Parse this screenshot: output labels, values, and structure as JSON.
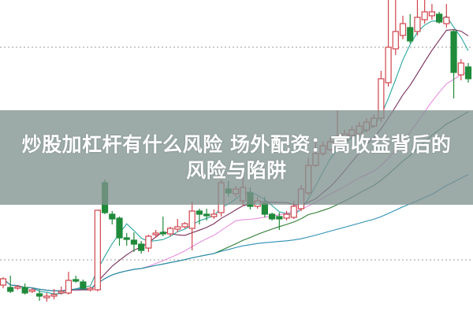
{
  "banner": {
    "title_line1": "炒股加杠杆有什么风险 场外配资：高收益背后的",
    "title_line2": "风险与陷阱",
    "background": "#80928f"
  },
  "chart_data": {
    "type": "candlestick",
    "title": "",
    "xlabel": "",
    "ylabel": "",
    "ylim": [
      0,
      40
    ],
    "grid": true,
    "grid_levels": [
      34,
      7
    ],
    "colors": {
      "up": "#d0444c",
      "down": "#1f8a3a",
      "ma5": "#2aa6a0",
      "ma10": "#7a2d5a",
      "ma20": "#e88ee0",
      "ma30": "#2e7d32",
      "ma60": "#2b8fb5",
      "grid": "#999999"
    },
    "moving_averages": [
      5,
      10,
      20,
      30,
      60
    ],
    "reference_line": 13.3,
    "candles": [
      [
        3.8,
        4.6,
        4.8,
        3.4
      ],
      [
        3.5,
        3.0,
        5.0,
        2.8
      ],
      [
        3.4,
        3.6,
        3.8,
        3.2
      ],
      [
        3.5,
        2.8,
        4.0,
        2.6
      ],
      [
        3.0,
        3.2,
        3.4,
        2.8
      ],
      [
        2.7,
        2.4,
        3.2,
        1.8
      ],
      [
        2.2,
        2.4,
        2.8,
        1.7
      ],
      [
        2.4,
        2.6,
        3.3,
        2.0
      ],
      [
        2.8,
        3.0,
        3.6,
        2.6
      ],
      [
        2.8,
        4.4,
        5.5,
        2.6
      ],
      [
        4.5,
        4.3,
        5.0,
        4.1
      ],
      [
        4.2,
        3.4,
        4.5,
        3.2
      ],
      [
        3.2,
        3.4,
        3.6,
        3.0
      ],
      [
        3.2,
        13.3,
        13.3,
        3.0
      ],
      [
        16.8,
        13.0,
        17.2,
        12.8
      ],
      [
        12.8,
        12.2,
        13.2,
        11.5
      ],
      [
        12.3,
        9.8,
        12.5,
        8.8
      ],
      [
        9.8,
        9.6,
        10.4,
        8.8
      ],
      [
        9.5,
        9.0,
        10.5,
        8.0
      ],
      [
        9.0,
        8.2,
        9.4,
        7.8
      ],
      [
        8.5,
        10.0,
        10.2,
        8.0
      ],
      [
        10.2,
        10.4,
        10.8,
        9.8
      ],
      [
        10.5,
        10.3,
        12.5,
        10.0
      ],
      [
        10.3,
        11.0,
        11.2,
        10.0
      ],
      [
        10.9,
        11.2,
        12.2,
        10.5
      ],
      [
        11.2,
        11.6,
        11.8,
        11.0
      ],
      [
        11.0,
        13.2,
        14.4,
        8.2
      ],
      [
        13.2,
        12.8,
        13.5,
        11.5
      ],
      [
        12.8,
        12.6,
        13.5,
        12.0
      ],
      [
        12.5,
        12.8,
        13.4,
        12.2
      ],
      [
        13.0,
        16.8,
        17.2,
        12.5
      ],
      [
        16.0,
        15.5,
        17.0,
        15.0
      ],
      [
        15.4,
        16.0,
        16.4,
        15.0
      ],
      [
        14.5,
        16.2,
        17.5,
        13.8
      ],
      [
        15.5,
        13.8,
        16.2,
        13.4
      ],
      [
        13.8,
        14.5,
        15.0,
        13.5
      ],
      [
        14.2,
        12.8,
        15.0,
        12.4
      ],
      [
        12.8,
        12.2,
        13.0,
        12.0
      ],
      [
        12.5,
        12.2,
        13.0,
        10.8
      ],
      [
        12.3,
        12.8,
        13.2,
        12.0
      ],
      [
        12.4,
        13.8,
        14.5,
        12.2
      ],
      [
        13.5,
        16.0,
        16.5,
        13.2
      ],
      [
        15.5,
        19.0,
        20.0,
        15.2
      ],
      [
        19.0,
        20.5,
        22.0,
        18.8
      ],
      [
        20.5,
        21.5,
        22.0,
        20.2
      ],
      [
        21.0,
        22.0,
        22.5,
        20.8
      ],
      [
        21.8,
        22.5,
        26.0,
        21.5
      ],
      [
        22.2,
        23.0,
        23.5,
        22.0
      ],
      [
        22.8,
        23.5,
        24.0,
        22.5
      ],
      [
        23.0,
        24.0,
        24.5,
        22.8
      ],
      [
        23.5,
        24.5,
        25.0,
        23.2
      ],
      [
        24.0,
        25.0,
        25.5,
        23.8
      ],
      [
        25.0,
        30.0,
        31.0,
        24.5
      ],
      [
        29.5,
        34.0,
        40.0,
        29.0
      ],
      [
        33.8,
        36.0,
        40.0,
        33.0
      ],
      [
        35.5,
        37.0,
        38.0,
        35.0
      ],
      [
        36.5,
        34.8,
        38.2,
        34.5
      ],
      [
        36.0,
        37.8,
        40.0,
        35.5
      ],
      [
        37.5,
        38.5,
        40.0,
        37.0
      ],
      [
        38.0,
        38.5,
        39.5,
        37.5
      ],
      [
        38.2,
        37.2,
        38.5,
        37.0
      ],
      [
        37.0,
        37.8,
        39.5,
        36.5
      ],
      [
        36.0,
        30.8,
        36.2,
        27.5
      ],
      [
        30.5,
        32.0,
        32.5,
        29.8
      ],
      [
        31.5,
        30.0,
        32.0,
        29.5
      ]
    ]
  }
}
